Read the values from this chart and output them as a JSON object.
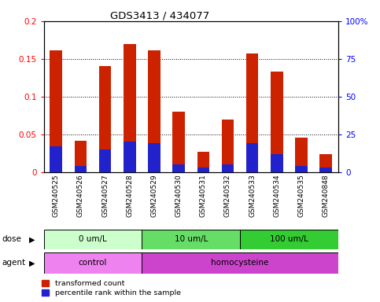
{
  "title": "GDS3413 / 434077",
  "samples": [
    "GSM240525",
    "GSM240526",
    "GSM240527",
    "GSM240528",
    "GSM240529",
    "GSM240530",
    "GSM240531",
    "GSM240532",
    "GSM240533",
    "GSM240534",
    "GSM240535",
    "GSM240848"
  ],
  "red_values": [
    0.161,
    0.042,
    0.141,
    0.17,
    0.161,
    0.08,
    0.027,
    0.07,
    0.157,
    0.133,
    0.046,
    0.024
  ],
  "blue_values_pct": [
    17,
    4,
    15,
    20,
    19,
    5,
    3,
    5,
    19,
    12,
    4,
    3
  ],
  "ylim_left": [
    0,
    0.2
  ],
  "ylim_right": [
    0,
    100
  ],
  "yticks_left": [
    0,
    0.05,
    0.1,
    0.15,
    0.2
  ],
  "yticks_right": [
    0,
    25,
    50,
    75,
    100
  ],
  "ytick_labels_left": [
    "0",
    "0.05",
    "0.1",
    "0.15",
    "0.2"
  ],
  "ytick_labels_right": [
    "0",
    "25",
    "50",
    "75",
    "100%"
  ],
  "dose_groups": [
    {
      "label": "0 um/L",
      "start": 0,
      "end": 4,
      "colors": [
        "#ccffcc",
        "#aaffaa",
        "#88ee88",
        "#aaffaa"
      ]
    },
    {
      "label": "10 um/L",
      "start": 4,
      "end": 8,
      "colors": [
        "#55dd55",
        "#44cc44",
        "#55dd55",
        "#44cc44"
      ]
    },
    {
      "label": "100 um/L",
      "start": 8,
      "end": 12,
      "colors": [
        "#22bb22",
        "#33cc33",
        "#22bb22",
        "#33cc33"
      ]
    }
  ],
  "dose_bg_colors": [
    "#ccffcc",
    "#66dd66",
    "#33cc33"
  ],
  "agent_bg_colors": [
    "#ee82ee",
    "#cc44cc"
  ],
  "agent_groups": [
    {
      "label": "control",
      "start": 0,
      "end": 4
    },
    {
      "label": "homocysteine",
      "start": 4,
      "end": 12
    }
  ],
  "legend_red_label": "transformed count",
  "legend_blue_label": "percentile rank within the sample",
  "bar_width": 0.5,
  "red_color": "#cc2200",
  "blue_color": "#2222cc",
  "bg_color": "#ffffff",
  "dose_label": "dose",
  "agent_label": "agent"
}
